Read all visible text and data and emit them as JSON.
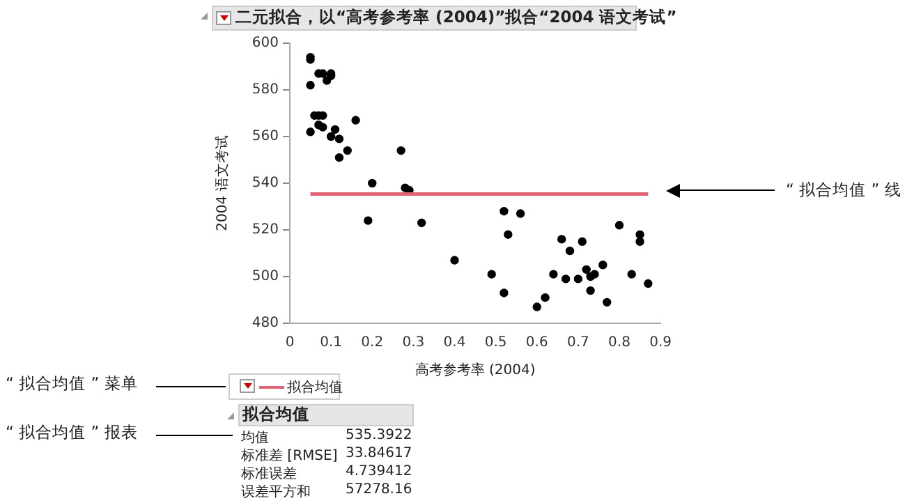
{
  "chart_data": {
    "type": "scatter",
    "title": "二元拟合，以“高考参考率 (2004)”拟合“2004 语文考试”",
    "xlabel": "高考参考率 (2004)",
    "ylabel": "2004 语文考试",
    "x": [
      0.05,
      0.05,
      0.05,
      0.05,
      0.07,
      0.08,
      0.1,
      0.1,
      0.09,
      0.06,
      0.07,
      0.08,
      0.07,
      0.08,
      0.11,
      0.1,
      0.12,
      0.12,
      0.14,
      0.16,
      0.2,
      0.19,
      0.27,
      0.28,
      0.29,
      0.32,
      0.4,
      0.52,
      0.56,
      0.53,
      0.49,
      0.52,
      0.6,
      0.62,
      0.64,
      0.66,
      0.67,
      0.68,
      0.7,
      0.71,
      0.72,
      0.73,
      0.74,
      0.73,
      0.76,
      0.77,
      0.8,
      0.83,
      0.85,
      0.85,
      0.87
    ],
    "series": [
      {
        "color": "#000000",
        "values": [
          594,
          593,
          582,
          562,
          587,
          587,
          587,
          586,
          584,
          569,
          569,
          569,
          565,
          564,
          563,
          560,
          559,
          551,
          554,
          567,
          540,
          524,
          554,
          538,
          537,
          523,
          507,
          528,
          527,
          518,
          501,
          493,
          487,
          491,
          501,
          516,
          499,
          511,
          499,
          515,
          503,
          500,
          501,
          494,
          505,
          489,
          522,
          501,
          518,
          515,
          497
        ]
      }
    ],
    "xlim": [
      0,
      0.9
    ],
    "xticks": [
      0,
      0.1,
      0.2,
      0.3,
      0.4,
      0.5,
      0.6,
      0.7,
      0.8,
      0.9
    ],
    "ylim": [
      480,
      600
    ],
    "yticks": [
      480,
      500,
      520,
      540,
      560,
      580,
      600
    ],
    "grid": false,
    "marker": "circle",
    "ref_lines": [
      {
        "axis": "y",
        "value": 535.3922,
        "label": "拟合均值",
        "color": "#e06474"
      }
    ],
    "annotations": [
      "“ 拟合均值 ” 线",
      "“ 拟合均值 ” 菜单",
      "“ 拟合均值 ” 报表",
      "拟合均值",
      "均值",
      "535.3922",
      "标准差 [RMSE]",
      "33.84617",
      "标准误差",
      "4.739412",
      "误差平方和",
      "57278.16"
    ]
  }
}
